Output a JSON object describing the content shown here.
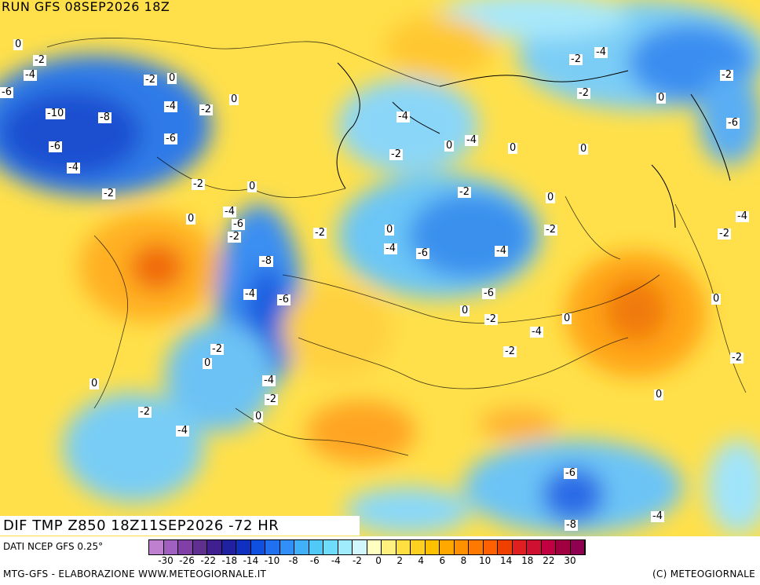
{
  "header": {
    "run": "RUN GFS 08SEP2026 18Z"
  },
  "map_title": "DIF TMP Z850 18Z11SEP2026 -72 HR",
  "footer": {
    "source": "DATI NCEP GFS 0.25°",
    "credits": "MTG-GFS - ELABORAZIONE WWW.METEOGIORNALE.IT",
    "copyright": "(C) METEOGIORNALE"
  },
  "colorbar": {
    "colors": [
      "#c080d0",
      "#a060c0",
      "#8040a8",
      "#603090",
      "#402090",
      "#2020a0",
      "#1030c0",
      "#1050e0",
      "#2070f0",
      "#3090f8",
      "#40b0f8",
      "#50c8f8",
      "#70dcfc",
      "#a0ecfc",
      "#d0f8fc",
      "#ffffc0",
      "#fff080",
      "#ffe040",
      "#ffd020",
      "#ffc000",
      "#ffa800",
      "#ff9000",
      "#ff7800",
      "#ff6000",
      "#f04000",
      "#e02020",
      "#d01030",
      "#c00040",
      "#a00040",
      "#900050"
    ],
    "tick_labels": [
      "-30",
      "-26",
      "-22",
      "-18",
      "-14",
      "-10",
      "-8",
      "-6",
      "-4",
      "-2",
      "0",
      "2",
      "4",
      "6",
      "8",
      "10",
      "14",
      "18",
      "22",
      "30"
    ]
  },
  "contour_labels": [
    "0",
    "-2",
    "-4",
    "-6",
    "-8",
    "-10",
    "-2",
    "0",
    "-4",
    "-6",
    "-8",
    "-2",
    "0",
    "-2",
    "-4",
    "-6",
    "-2",
    "0",
    "-2",
    "-4",
    "-6",
    "0",
    "-2",
    "-4",
    "0",
    "-2",
    "-4",
    "0",
    "-6",
    "-8",
    "-4",
    "0",
    "-2",
    "-4",
    "-6",
    "-2",
    "0",
    "-4",
    "-2",
    "0",
    "-4",
    "-6",
    "-2",
    "0",
    "0",
    "-2",
    "-4",
    "0",
    "-2",
    "-6",
    "-2",
    "0",
    "-4",
    "-2",
    "0",
    "-2",
    "-4",
    "0",
    "-2",
    "0",
    "-4",
    "-2",
    "0",
    "-2",
    "-4",
    "-6",
    "-8"
  ],
  "icons": {
    "coastline": "coastline-lines",
    "borders": "country-borders"
  }
}
